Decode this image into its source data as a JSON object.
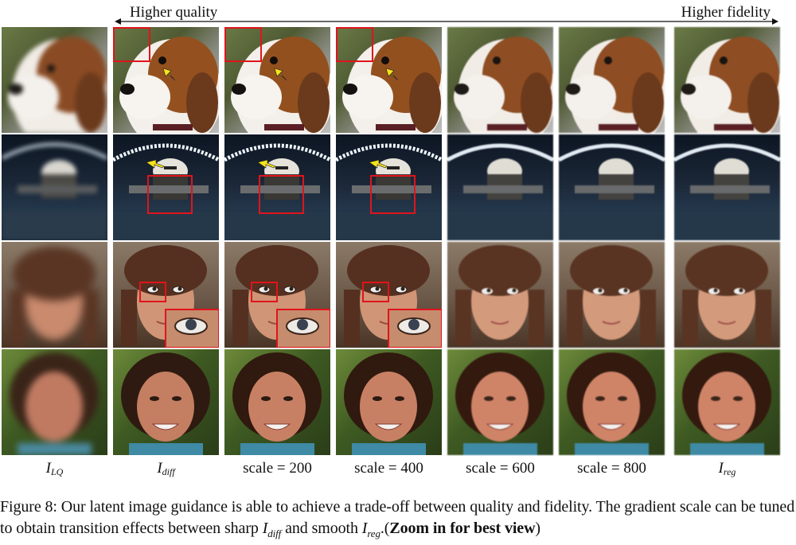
{
  "header": {
    "left_label": "Higher quality",
    "right_label": "Higher fidelity"
  },
  "columns": [
    {
      "label_main": "I",
      "label_sub": "LQ",
      "italic": true
    },
    {
      "label_main": "I",
      "label_sub": "diff",
      "italic": true
    },
    {
      "label_main": "scale = 200",
      "label_sub": "",
      "italic": false
    },
    {
      "label_main": "scale = 400",
      "label_sub": "",
      "italic": false
    },
    {
      "label_main": "scale = 600",
      "label_sub": "",
      "italic": false
    },
    {
      "label_main": "scale = 800",
      "label_sub": "",
      "italic": false
    },
    {
      "label_main": "I",
      "label_sub": "reg",
      "italic": true
    }
  ],
  "caption": {
    "prefix": "Figure 8:",
    "text1": " Our latent image guidance is able to achieve a trade-off between quality and fidelity. The gradient scale can be tuned to obtain transition effects between sharp ",
    "var1_main": "I",
    "var1_sub": "diff",
    "text2": " and smooth ",
    "var2_main": "I",
    "var2_sub": "reg",
    "text3": ".(",
    "bold": "Zoom in for best view",
    "text4": ")"
  },
  "colors": {
    "highlight_box": "#e0141c",
    "arrow_marker": "#f5e31a"
  }
}
